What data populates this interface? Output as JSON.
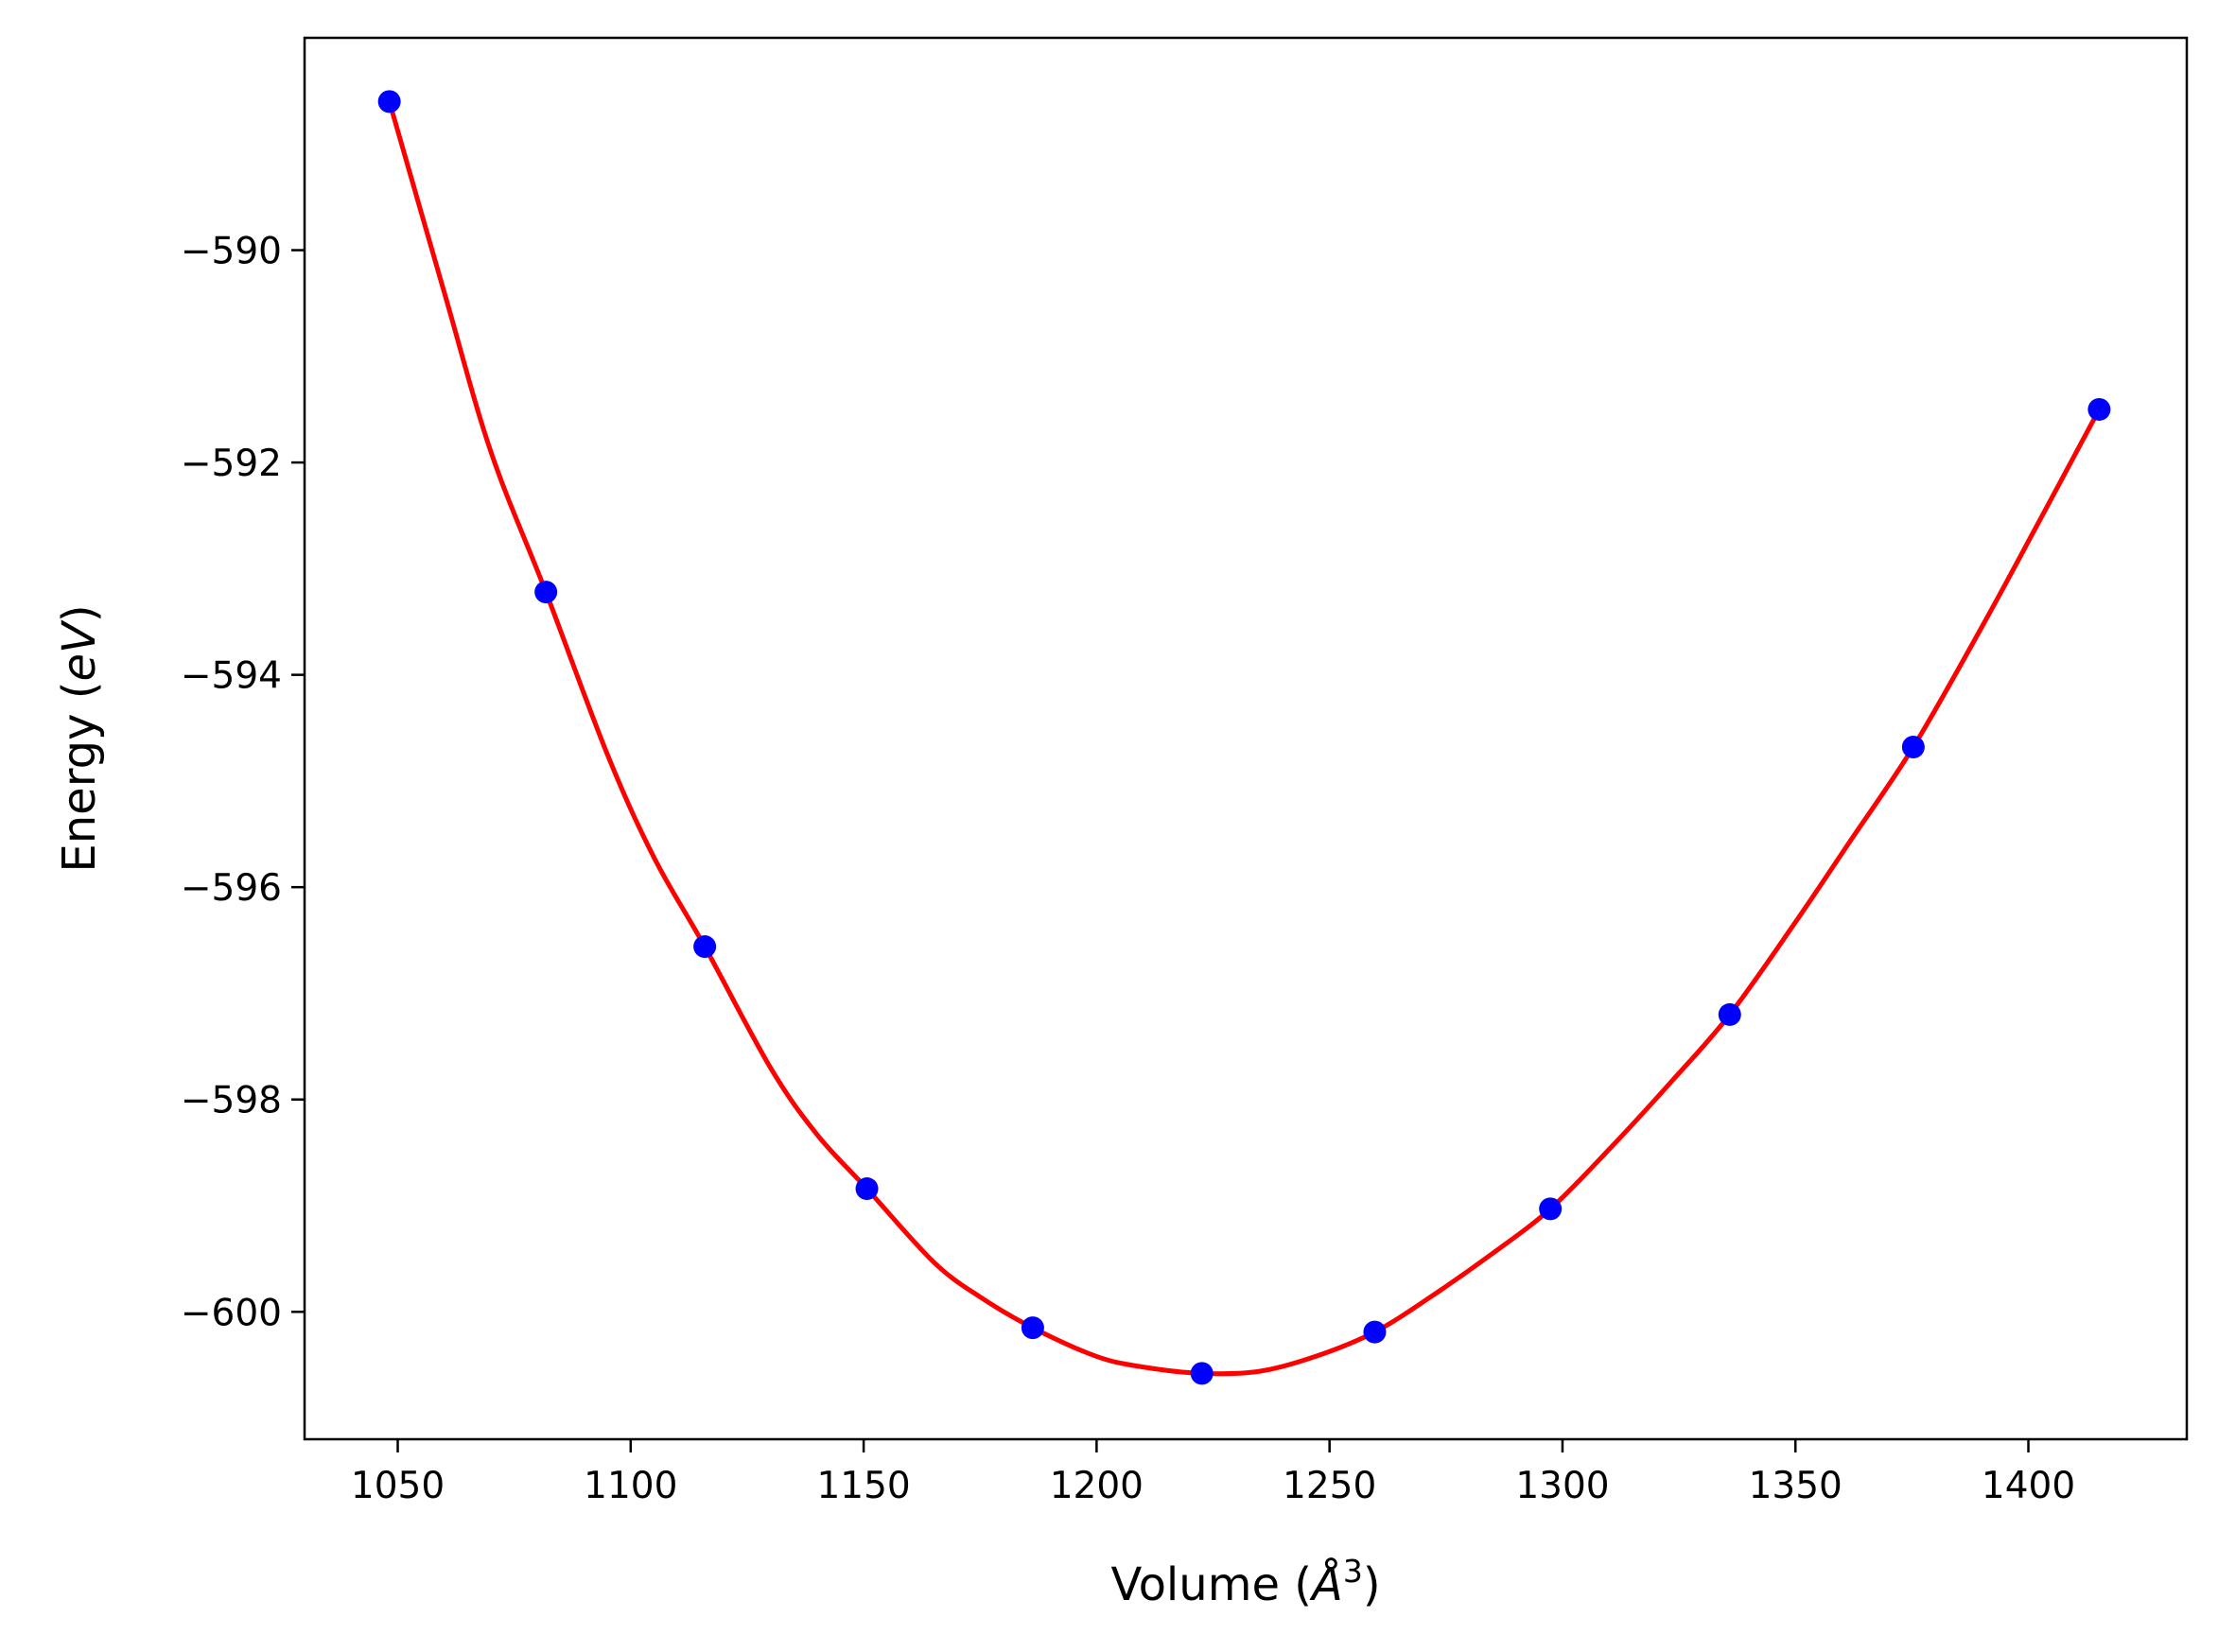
{
  "chart_data": {
    "type": "scatter",
    "title": "",
    "xlabel": "Volume ($\\AA^3$)",
    "xlabel_parts": {
      "prefix": "Volume (",
      "symbol": "Å",
      "sup": "3",
      "suffix": ")"
    },
    "ylabel": "Energy ($eV$)",
    "ylabel_parts": {
      "prefix": "Energy (",
      "italic": "eV",
      "suffix": ")"
    },
    "xlim": [
      1030,
      1434
    ],
    "ylim": [
      -601.2,
      -588.0
    ],
    "x_ticks": [
      1050,
      1100,
      1150,
      1200,
      1250,
      1300,
      1350,
      1400
    ],
    "y_ticks": [
      -590,
      -592,
      -594,
      -596,
      -598,
      -600
    ],
    "y_tick_labels": [
      "−590",
      "−592",
      "−594",
      "−596",
      "−598",
      "−600"
    ],
    "grid": false,
    "legend": "none",
    "series": [
      {
        "kind": "points",
        "color": "#0000ff",
        "x": [
          1048.2,
          1081.8,
          1115.9,
          1150.7,
          1186.3,
          1222.6,
          1259.7,
          1297.4,
          1335.9,
          1375.3,
          1415.2
        ],
        "y": [
          -588.6,
          -593.22,
          -596.56,
          -598.84,
          -600.15,
          -600.58,
          -600.19,
          -599.03,
          -597.2,
          -594.68,
          -591.5
        ]
      },
      {
        "kind": "fit-curve",
        "color": "#ff0000",
        "x": [
          1048.2,
          1060,
          1070,
          1081.8,
          1095,
          1105,
          1115.9,
          1130,
          1140,
          1150.7,
          1165,
          1175,
          1186.3,
          1200,
          1210,
          1222.6,
          1235,
          1247,
          1259.7,
          1272,
          1285,
          1297.4,
          1310,
          1323,
          1335.9,
          1350,
          1362,
          1375.3,
          1390,
          1402,
          1415.2
        ],
        "y": [
          -588.6,
          -590.4,
          -591.9,
          -593.22,
          -594.75,
          -595.72,
          -596.56,
          -597.7,
          -598.33,
          -598.84,
          -599.53,
          -599.86,
          -600.15,
          -600.42,
          -600.52,
          -600.58,
          -600.56,
          -600.42,
          -600.19,
          -599.85,
          -599.45,
          -599.03,
          -598.47,
          -597.85,
          -597.2,
          -596.33,
          -595.55,
          -594.68,
          -593.55,
          -592.58,
          -591.5
        ]
      }
    ]
  }
}
